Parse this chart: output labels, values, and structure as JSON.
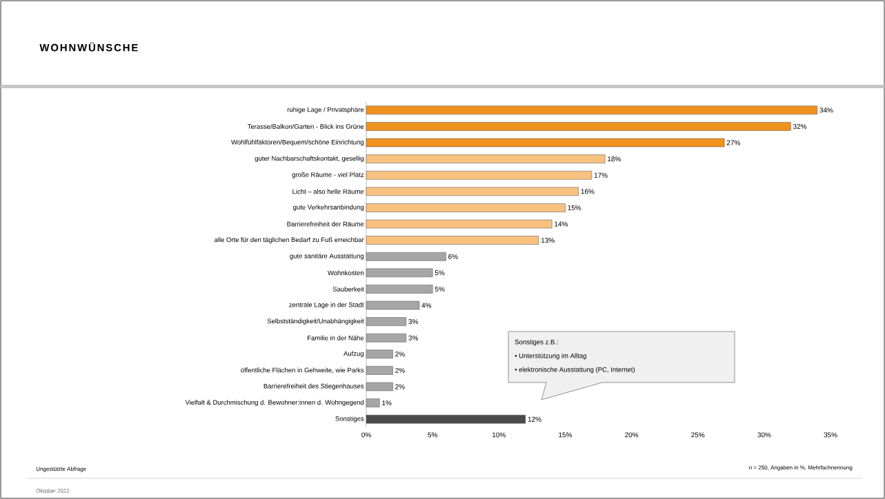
{
  "chart_data": {
    "type": "bar",
    "orientation": "horizontal",
    "title": "WOHNWÜNSCHE",
    "categories": [
      "ruhige Lage / Privatsphäre",
      "Terasse/Balkon/Garten - Blick ins Grüne",
      "Wohlfühlfaktoren/Bequem/schöne Einrichtung",
      "guter Nachbarschaftskontakt, gesellig",
      "große Räume - viel Platz",
      "Licht – also helle Räume",
      "gute Verkehrsanbindung",
      "Barrierefreiheit der Räume",
      "alle Orte für den täglichen Bedarf zu Fuß erreichbar",
      "gute sanitäre Ausstattung",
      "Wohnkosten",
      "Sauberkeit",
      "zentrale Lage in der Stadt",
      "Selbstständigkeit/Unabhängigkeit",
      "Familie in der Nähe",
      "Aufzug",
      "öffentliche Flächen in Gehweite, wie Parks",
      "Barrierefreiheit des Stiegenhauses",
      "Vielfalt & Durchmischung d. Bewohner:innen d. Wohngegend",
      "Sonstiges"
    ],
    "values": [
      34,
      32,
      27,
      18,
      17,
      16,
      15,
      14,
      13,
      6,
      5,
      5,
      4,
      3,
      3,
      2,
      2,
      2,
      1,
      12
    ],
    "value_labels": [
      "34%",
      "32%",
      "27%",
      "18%",
      "17%",
      "16%",
      "15%",
      "14%",
      "13%",
      "6%",
      "5%",
      "5%",
      "4%",
      "3%",
      "3%",
      "2%",
      "2%",
      "2%",
      "1%",
      "12%"
    ],
    "colors": [
      "#f0921e",
      "#f0921e",
      "#f0921e",
      "#f8c17f",
      "#f8c17f",
      "#f8c17f",
      "#f8c17f",
      "#f8c17f",
      "#f8c17f",
      "#a6a6a6",
      "#a6a6a6",
      "#a6a6a6",
      "#a6a6a6",
      "#a6a6a6",
      "#a6a6a6",
      "#a6a6a6",
      "#a6a6a6",
      "#a6a6a6",
      "#a6a6a6",
      "#4a4a4a"
    ],
    "xlim": [
      0,
      35
    ],
    "xticks": [
      {
        "value": 0,
        "label": "0%"
      },
      {
        "value": 5,
        "label": "5%"
      },
      {
        "value": 10,
        "label": "10%"
      },
      {
        "value": 15,
        "label": "15%"
      },
      {
        "value": 20,
        "label": "20%"
      },
      {
        "value": 25,
        "label": "25%"
      },
      {
        "value": 30,
        "label": "30%"
      },
      {
        "value": 35,
        "label": "35%"
      }
    ],
    "annotations": [
      "Sonstiges z.B.:",
      "• Unterstützung im Alltag",
      "• elektronische Ausstattung (PC, Internet)",
      "Ungestützte Abfrage",
      "n = 250, Angaben in %, Mehrfachnennung",
      "Oktober 2022"
    ]
  }
}
